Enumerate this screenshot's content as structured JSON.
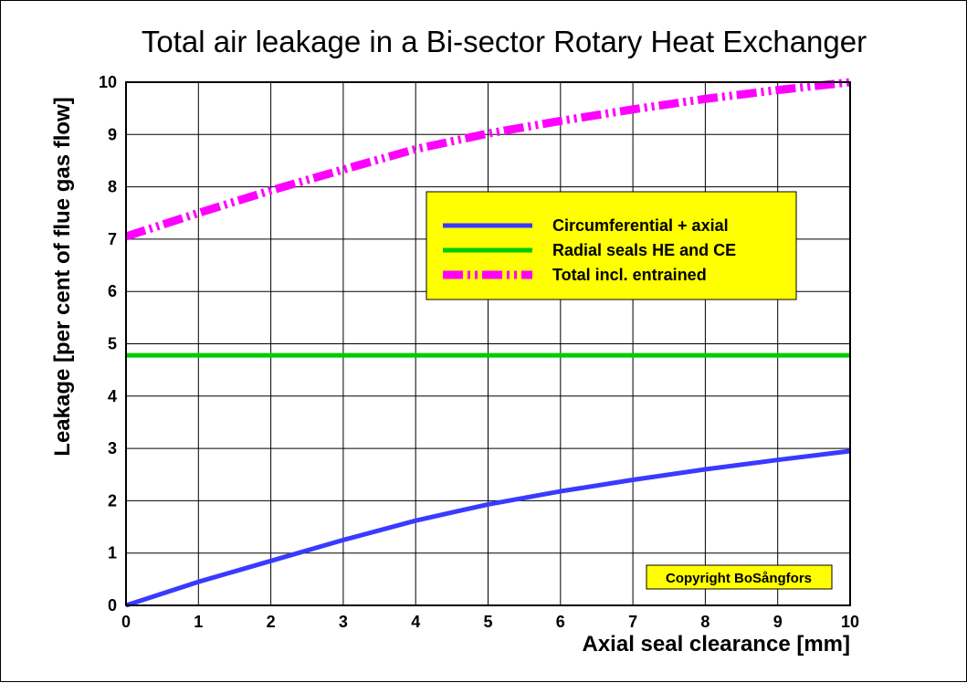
{
  "colors": {
    "background": "#ffffff",
    "grid": "#000000",
    "blue": "#3a3aff",
    "green": "#00cc00",
    "magenta": "#ff00ff",
    "legend_bg": "#ffff00"
  },
  "copyright": "Copyright BoSångfors",
  "chart_data": {
    "type": "line",
    "title": "Total air leakage in a Bi-sector Rotary Heat Exchanger",
    "xlabel": "Axial seal clearance [mm]",
    "ylabel": "Leakage [per cent of flue gas flow]",
    "xlim": [
      0,
      10
    ],
    "ylim": [
      0,
      10
    ],
    "xticks": [
      "0",
      "1",
      "2",
      "3",
      "4",
      "5",
      "6",
      "7",
      "8",
      "9",
      "10"
    ],
    "yticks": [
      "0",
      "1",
      "2",
      "3",
      "4",
      "5",
      "6",
      "7",
      "8",
      "9",
      "10"
    ],
    "grid": true,
    "legend_position": "upper-center-right",
    "series": [
      {
        "name": "Circumferential + axial",
        "color": "#3a3aff",
        "style": "solid",
        "x": [
          0,
          1,
          2,
          3,
          4,
          5,
          6,
          7,
          8,
          9,
          10
        ],
        "y": [
          0,
          0.45,
          0.85,
          1.25,
          1.62,
          1.93,
          2.18,
          2.4,
          2.6,
          2.78,
          2.95
        ]
      },
      {
        "name": "Radial seals HE and CE",
        "color": "#00cc00",
        "style": "solid",
        "x": [
          0,
          10
        ],
        "y": [
          4.78,
          4.78
        ]
      },
      {
        "name": "Total incl. entrained",
        "color": "#ff00ff",
        "style": "dashdot",
        "x": [
          0,
          1,
          2,
          3,
          4,
          5,
          6,
          7,
          8,
          9,
          10
        ],
        "y": [
          7.05,
          7.5,
          7.93,
          8.33,
          8.72,
          9.02,
          9.26,
          9.48,
          9.68,
          9.85,
          10.0
        ]
      }
    ]
  }
}
